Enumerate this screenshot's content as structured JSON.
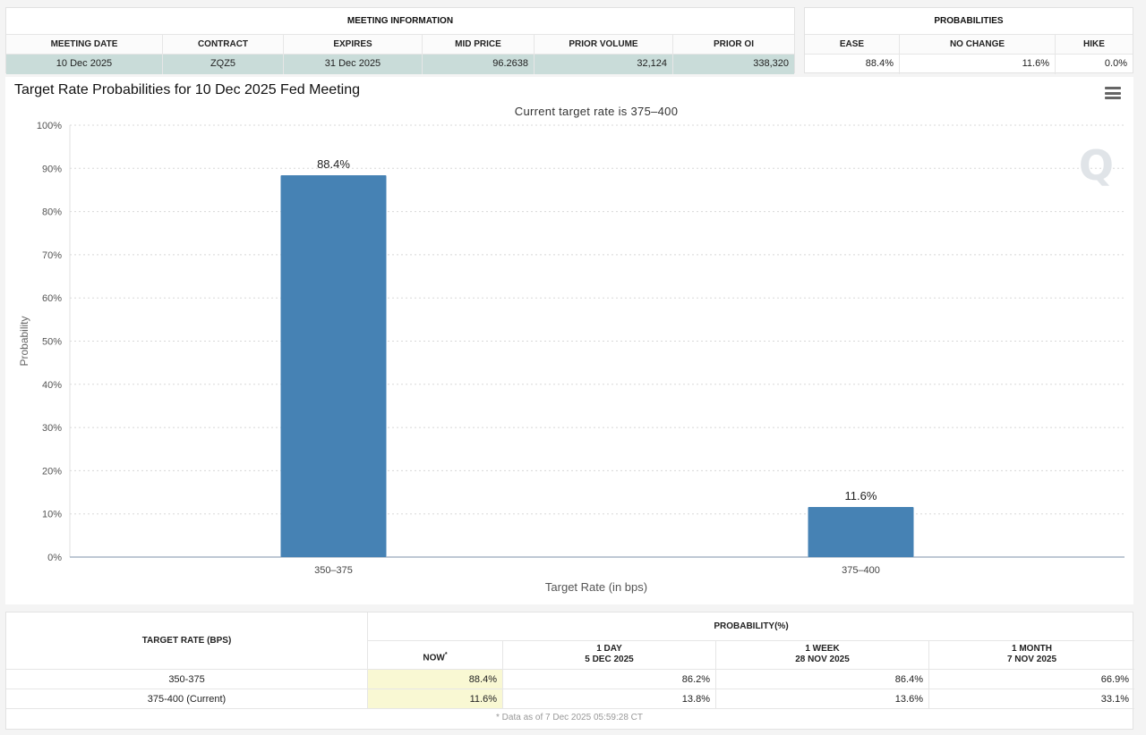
{
  "meeting_info": {
    "title": "MEETING INFORMATION",
    "headers": [
      "MEETING DATE",
      "CONTRACT",
      "EXPIRES",
      "MID PRICE",
      "PRIOR VOLUME",
      "PRIOR OI"
    ],
    "values": [
      "10 Dec 2025",
      "ZQZ5",
      "31 Dec 2025",
      "96.2638",
      "32,124",
      "338,320"
    ]
  },
  "probabilities": {
    "title": "PROBABILITIES",
    "headers": [
      "EASE",
      "NO CHANGE",
      "HIKE"
    ],
    "values": [
      "88.4%",
      "11.6%",
      "0.0%"
    ]
  },
  "chart": {
    "title": "Target Rate Probabilities for 10 Dec 2025 Fed Meeting",
    "subtitle": "Current target rate is 375–400",
    "watermark": "Q",
    "menu_icon": "hamburger-menu-icon"
  },
  "chart_data": {
    "type": "bar",
    "categories": [
      "350–375",
      "375–400"
    ],
    "values": [
      88.4,
      11.6
    ],
    "data_labels": [
      "88.4%",
      "11.6%"
    ],
    "title": "Target Rate Probabilities for 10 Dec 2025 Fed Meeting",
    "subtitle": "Current target rate is 375–400",
    "xlabel": "Target Rate (in bps)",
    "ylabel": "Probability",
    "ylim": [
      0,
      100
    ],
    "yticks": [
      "0%",
      "10%",
      "20%",
      "30%",
      "40%",
      "50%",
      "60%",
      "70%",
      "80%",
      "90%",
      "100%"
    ],
    "grid": true,
    "bar_color": "#4682b4"
  },
  "prob_table": {
    "row_header": "TARGET RATE (BPS)",
    "group_header": "PROBABILITY(%)",
    "columns": [
      {
        "line1": "NOW",
        "line2": "",
        "marker": "*"
      },
      {
        "line1": "1 DAY",
        "line2": "5 DEC 2025"
      },
      {
        "line1": "1 WEEK",
        "line2": "28 NOV 2025"
      },
      {
        "line1": "1 MONTH",
        "line2": "7 NOV 2025"
      }
    ],
    "rows": [
      {
        "label": "350-375",
        "values": [
          "88.4%",
          "86.2%",
          "86.4%",
          "66.9%"
        ]
      },
      {
        "label": "375-400 (Current)",
        "values": [
          "11.6%",
          "13.8%",
          "13.6%",
          "33.1%"
        ]
      }
    ],
    "footnote": "* Data as of 7 Dec 2025 05:59:28 CT",
    "now_highlight_color": "#f9f8d3"
  }
}
